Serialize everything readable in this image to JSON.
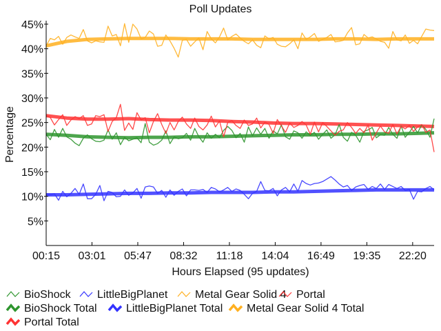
{
  "chart_data": {
    "type": "line",
    "title": "Poll Updates",
    "xlabel": "Hours Elapsed (95 updates)",
    "ylabel": "Percentage",
    "ylim": [
      0,
      45
    ],
    "yticks": [
      "5%",
      "10%",
      "15%",
      "20%",
      "25%",
      "30%",
      "35%",
      "40%",
      "45%"
    ],
    "ytick_values": [
      5,
      10,
      15,
      20,
      25,
      30,
      35,
      40,
      45
    ],
    "xticks": [
      "00:15",
      "03:01",
      "05:47",
      "08:32",
      "11:18",
      "14:04",
      "16:49",
      "19:35",
      "22:20"
    ],
    "xtick_update_index": [
      0,
      11.1,
      22.2,
      33.3,
      44.4,
      55.5,
      66.6,
      77.7,
      88.8
    ],
    "x_update_range": [
      0,
      94
    ],
    "grid": false,
    "legend_placement": "bottom",
    "series": [
      {
        "name": "BioShock",
        "color": "#2e952e",
        "kind": "update",
        "values": [
          22.6,
          21.5,
          23.6,
          22.0,
          23.8,
          22.1,
          21.6,
          20.8,
          20.3,
          21.8,
          22.5,
          21.7,
          21.2,
          21.1,
          21.4,
          23.5,
          21.6,
          22.9,
          20.5,
          22.0,
          21.3,
          21.6,
          21.9,
          20.9,
          24.8,
          21.0,
          20.4,
          20.7,
          21.4,
          23.3,
          20.7,
          22.1,
          21.7,
          21.9,
          22.8,
          21.4,
          23.8,
          22.1,
          21.0,
          22.9,
          21.8,
          22.6,
          21.9,
          23.4,
          24.2,
          23.4,
          21.9,
          22.8,
          21.0,
          24.1,
          22.3,
          23.9,
          22.6,
          23.8,
          21.8,
          23.3,
          22.7,
          24.5,
          22.1,
          21.6,
          23.3,
          22.9,
          21.8,
          23.1,
          22.4,
          23.0,
          21.6,
          22.6,
          23.5,
          21.8,
          22.5,
          24.6,
          22.0,
          21.2,
          23.0,
          22.4,
          21.0,
          23.2,
          23.5,
          24.0,
          21.9,
          22.5,
          22.4,
          24.0,
          22.6,
          21.8,
          24.3,
          22.0,
          23.0,
          24.2,
          22.9,
          24.5,
          23.6,
          22.0,
          25.8
        ]
      },
      {
        "name": "LittleBigPlanet",
        "color": "#3333ff",
        "kind": "update",
        "values": [
          10.4,
          10.3,
          10.5,
          9.2,
          11.0,
          9.9,
          10.6,
          11.6,
          10.4,
          12.5,
          9.5,
          9.5,
          10.4,
          12.2,
          9.1,
          11.0,
          10.8,
          9.9,
          10.0,
          11.3,
          10.2,
          10.7,
          11.6,
          9.6,
          11.9,
          12.1,
          11.9,
          10.6,
          11.2,
          9.8,
          11.3,
          10.2,
          11.0,
          11.5,
          10.1,
          11.3,
          11.3,
          11.2,
          11.4,
          10.8,
          11.8,
          11.5,
          10.9,
          11.3,
          11.8,
          11.0,
          11.5,
          11.2,
          10.4,
          9.5,
          10.6,
          11.0,
          13.0,
          11.2,
          11.1,
          11.6,
          10.1,
          11.3,
          11.8,
          10.9,
          12.5,
          11.0,
          13.2,
          12.6,
          12.3,
          12.6,
          12.7,
          13.0,
          13.5,
          14.0,
          13.3,
          12.5,
          11.9,
          12.2,
          11.2,
          11.9,
          12.2,
          12.4,
          11.4,
          12.0,
          11.6,
          12.5,
          11.4,
          12.4,
          12.0,
          11.6,
          12.0,
          11.2,
          11.4,
          9.4,
          11.0,
          10.9,
          11.6,
          12.0,
          11.3
        ]
      },
      {
        "name": "Metal Gear Solid 4",
        "color": "#ffb020",
        "kind": "update",
        "values": [
          40.6,
          42.1,
          41.8,
          42.5,
          40.9,
          42.3,
          42.8,
          42.4,
          42.1,
          43.9,
          41.6,
          41.2,
          41.6,
          41.4,
          41.3,
          44.6,
          42.6,
          42.9,
          40.6,
          45.1,
          41.3,
          45.0,
          44.0,
          42.0,
          42.3,
          43.6,
          43.0,
          40.5,
          40.7,
          42.8,
          41.6,
          40.1,
          38.3,
          41.7,
          41.9,
          40.5,
          41.4,
          42.2,
          39.8,
          43.5,
          42.0,
          41.2,
          42.4,
          44.2,
          41.8,
          42.5,
          43.0,
          42.2,
          41.5,
          41.0,
          41.8,
          40.7,
          40.2,
          42.6,
          42.0,
          42.3,
          40.9,
          40.5,
          40.4,
          41.0,
          41.8,
          40.0,
          43.2,
          41.9,
          42.4,
          43.1,
          41.5,
          41.9,
          42.3,
          42.9,
          41.4,
          41.5,
          41.7,
          43.2,
          44.3,
          40.8,
          41.0,
          42.9,
          42.2,
          42.4,
          42.0,
          41.5,
          41.3,
          40.1,
          43.5,
          41.8,
          41.6,
          42.8,
          41.1,
          41.7,
          41.0,
          42.5,
          44.0,
          43.8,
          43.7
        ]
      },
      {
        "name": "Portal",
        "color": "#ff3333",
        "kind": "update",
        "values": [
          26.4,
          26.0,
          24.5,
          25.6,
          26.6,
          24.4,
          25.5,
          26.2,
          25.8,
          26.4,
          24.4,
          24.7,
          26.4,
          26.2,
          26.6,
          23.2,
          25.2,
          26.0,
          28.7,
          23.4,
          24.9,
          23.6,
          27.0,
          25.5,
          26.0,
          22.9,
          25.2,
          26.8,
          24.6,
          22.8,
          25.0,
          23.5,
          25.2,
          26.1,
          24.7,
          23.8,
          25.9,
          24.2,
          23.5,
          24.5,
          26.3,
          24.1,
          25.3,
          22.1,
          25.0,
          25.4,
          24.4,
          23.8,
          25.5,
          24.4,
          24.7,
          25.9,
          23.9,
          25.1,
          24.6,
          22.8,
          25.6,
          24.3,
          23.0,
          24.9,
          24.0,
          24.4,
          25.2,
          24.5,
          22.6,
          25.1,
          23.1,
          25.0,
          24.2,
          23.3,
          22.4,
          23.2,
          23.5,
          25.0,
          24.0,
          22.8,
          23.8,
          22.9,
          24.5,
          21.4,
          22.9,
          24.3,
          23.1,
          22.8,
          24.6,
          22.7,
          24.2,
          23.7,
          24.4,
          23.2,
          24.1,
          24.6,
          23.0,
          23.5,
          19.0
        ]
      },
      {
        "name": "BioShock Total",
        "color": "#2e952e",
        "kind": "total",
        "x": [
          0,
          5,
          10,
          15,
          20,
          25,
          30,
          35,
          40,
          45,
          50,
          55,
          60,
          65,
          70,
          75,
          80,
          85,
          90,
          94
        ],
        "values": [
          22.6,
          22.4,
          22.1,
          22.0,
          21.9,
          22.0,
          22.0,
          22.1,
          22.1,
          22.2,
          22.3,
          22.4,
          22.5,
          22.5,
          22.6,
          22.6,
          22.7,
          22.7,
          22.8,
          22.9
        ]
      },
      {
        "name": "LittleBigPlanet Total",
        "color": "#3333ff",
        "kind": "total",
        "x": [
          0,
          5,
          10,
          15,
          20,
          25,
          30,
          35,
          40,
          45,
          50,
          55,
          60,
          65,
          70,
          75,
          80,
          85,
          90,
          94
        ],
        "values": [
          10.3,
          10.3,
          10.4,
          10.5,
          10.6,
          10.6,
          10.7,
          10.7,
          10.8,
          10.8,
          10.8,
          10.9,
          10.9,
          11.0,
          11.1,
          11.2,
          11.3,
          11.3,
          11.3,
          11.3
        ]
      },
      {
        "name": "Metal Gear Solid 4 Total",
        "color": "#ffb020",
        "kind": "total",
        "x": [
          0,
          5,
          10,
          15,
          20,
          25,
          30,
          35,
          40,
          45,
          50,
          55,
          60,
          65,
          70,
          75,
          80,
          85,
          90,
          94
        ],
        "values": [
          40.6,
          41.5,
          41.9,
          42.0,
          42.1,
          42.1,
          42.1,
          42.0,
          42.0,
          42.0,
          41.9,
          41.9,
          41.9,
          41.9,
          42.0,
          42.0,
          41.9,
          42.0,
          42.0,
          42.0
        ]
      },
      {
        "name": "Portal Total",
        "color": "#ff3333",
        "kind": "total",
        "x": [
          0,
          5,
          10,
          15,
          20,
          25,
          30,
          35,
          40,
          45,
          50,
          55,
          60,
          65,
          70,
          75,
          80,
          85,
          90,
          94
        ],
        "values": [
          26.4,
          25.9,
          25.7,
          25.7,
          25.8,
          25.6,
          25.5,
          25.5,
          25.4,
          25.2,
          25.1,
          24.9,
          24.8,
          24.8,
          24.7,
          24.6,
          24.5,
          24.4,
          24.3,
          24.2
        ]
      }
    ]
  }
}
